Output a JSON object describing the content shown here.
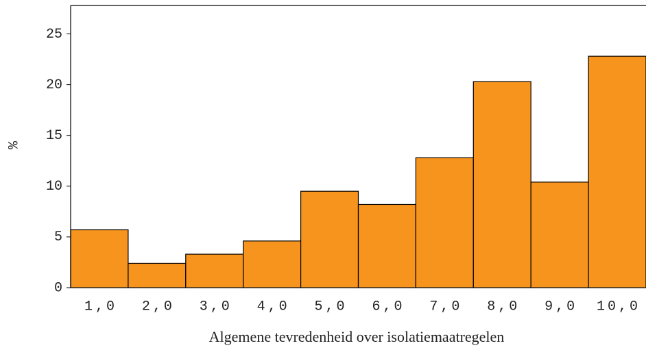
{
  "chart_data": {
    "type": "bar",
    "x_label": "Algemene tevredenheid over isolatiemaatregelen",
    "y_label": "%",
    "categories": [
      "1,0",
      "2,0",
      "3,0",
      "4,0",
      "5,0",
      "6,0",
      "7,0",
      "8,0",
      "9,0",
      "10,0"
    ],
    "values": [
      5.7,
      2.4,
      3.3,
      4.6,
      9.5,
      8.2,
      12.8,
      20.3,
      10.4,
      22.8
    ],
    "color": "#f7941d",
    "ylim": [
      0,
      27.8
    ],
    "yticks": [
      0,
      5,
      10,
      15,
      20,
      25
    ]
  }
}
